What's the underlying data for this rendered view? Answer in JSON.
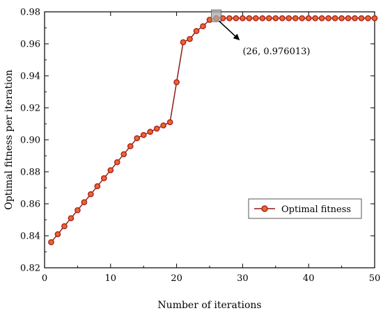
{
  "chart_data": {
    "type": "line",
    "xlabel": "Number of iterations",
    "ylabel": "Optimal fitness per iteration",
    "xlim": [
      0,
      50
    ],
    "ylim": [
      0.82,
      0.98
    ],
    "x_ticks": [
      0,
      10,
      20,
      30,
      40,
      50
    ],
    "y_ticks": [
      0.82,
      0.84,
      0.86,
      0.88,
      0.9,
      0.92,
      0.94,
      0.96,
      0.98
    ],
    "x_tick_labels": [
      "0",
      "10",
      "20",
      "30",
      "40",
      "50"
    ],
    "y_tick_labels": [
      "0.82",
      "0.84",
      "0.86",
      "0.88",
      "0.90",
      "0.92",
      "0.94",
      "0.96",
      "0.98"
    ],
    "grid": false,
    "legend_position": "right",
    "series": [
      {
        "name": "Optimal fitness",
        "color": "#b22222",
        "marker": "circle",
        "x": [
          1,
          2,
          3,
          4,
          5,
          6,
          7,
          8,
          9,
          10,
          11,
          12,
          13,
          14,
          15,
          16,
          17,
          18,
          19,
          20,
          21,
          22,
          23,
          24,
          25,
          26,
          27,
          28,
          29,
          30,
          31,
          32,
          33,
          34,
          35,
          36,
          37,
          38,
          39,
          40,
          41,
          42,
          43,
          44,
          45,
          46,
          47,
          48,
          49,
          50
        ],
        "values": [
          0.836,
          0.841,
          0.846,
          0.851,
          0.856,
          0.861,
          0.866,
          0.871,
          0.876,
          0.881,
          0.886,
          0.891,
          0.896,
          0.901,
          0.903,
          0.905,
          0.907,
          0.909,
          0.911,
          0.936,
          0.961,
          0.963,
          0.968,
          0.971,
          0.975,
          0.976013,
          0.976013,
          0.976013,
          0.976013,
          0.976013,
          0.976013,
          0.976013,
          0.976013,
          0.976013,
          0.976013,
          0.976013,
          0.976013,
          0.976013,
          0.976013,
          0.976013,
          0.976013,
          0.976013,
          0.976013,
          0.976013,
          0.976013,
          0.976013,
          0.976013,
          0.976013,
          0.976013,
          0.976013
        ]
      }
    ],
    "annotation": {
      "text": "(26, 0.976013)",
      "x": 26,
      "y": 0.976013
    }
  }
}
